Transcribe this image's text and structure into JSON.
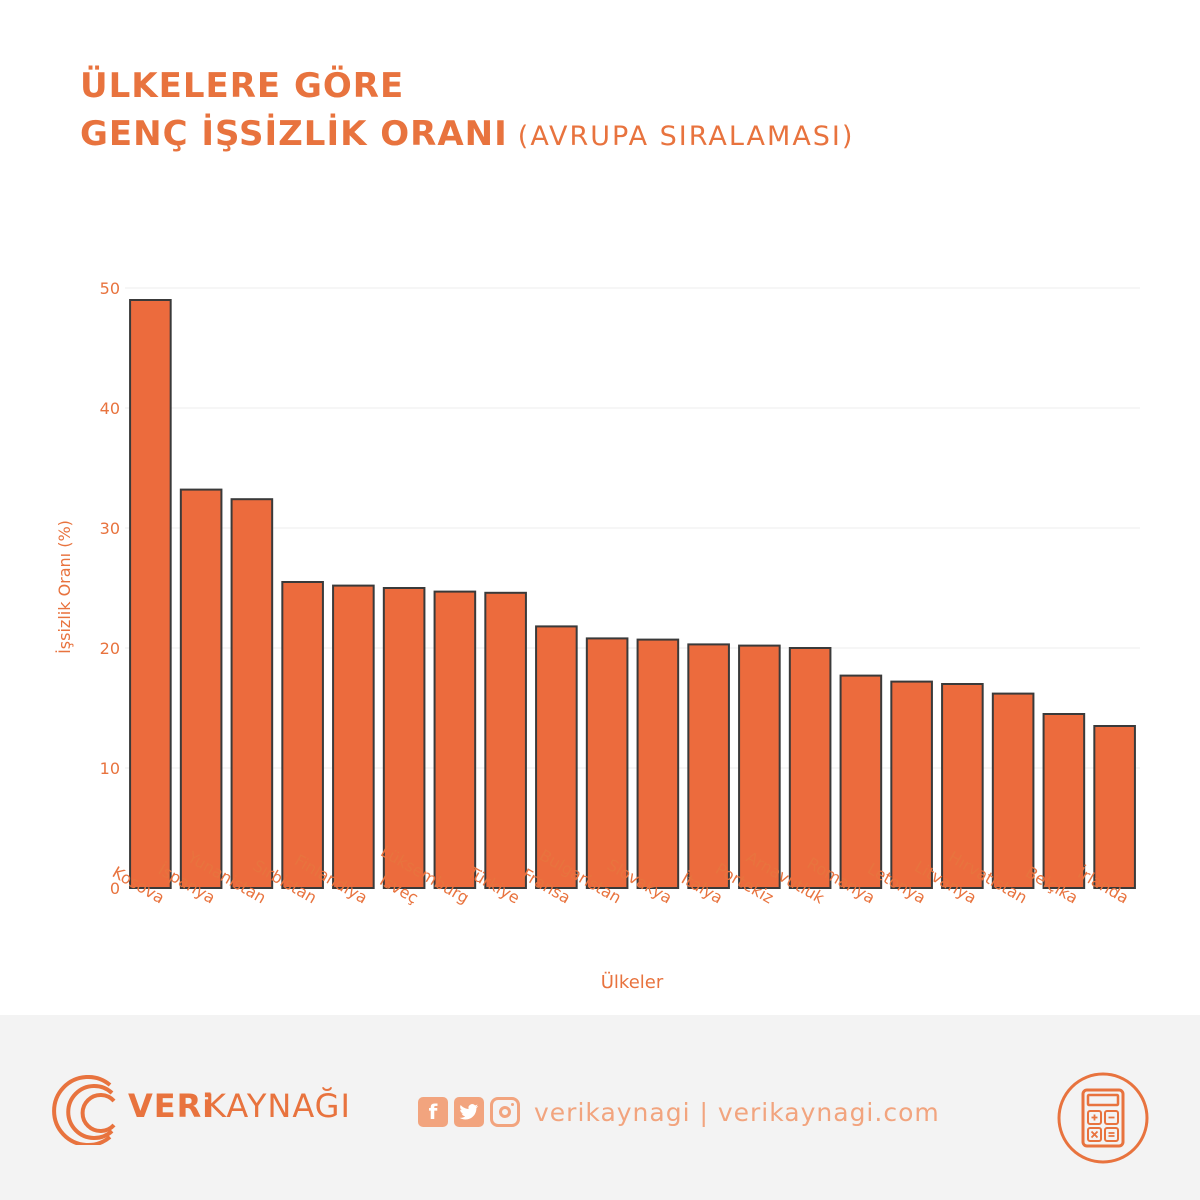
{
  "header": {
    "title_line1": "ÜLKELERE GÖRE",
    "title_line2": "GENÇ İŞSİZLİK ORANI",
    "title_suffix": "(AVRUPA SIRALAMASI)"
  },
  "chart_data": {
    "type": "bar",
    "title": "ÜLKELERE GÖRE GENÇ İŞSİZLİK ORANI (AVRUPA SIRALAMASI)",
    "xlabel": "Ülkeler",
    "ylabel": "İşsizlik Oranı (%)",
    "ylim": [
      0,
      50
    ],
    "yticks": [
      0,
      10,
      20,
      30,
      40,
      50
    ],
    "grid": true,
    "categories": [
      "Kosova",
      "İspanya",
      "Yunanistan",
      "Sırbistan",
      "Finlandiya",
      "İsveç",
      "Lüksemburg",
      "Türkiye",
      "Fransa",
      "Bulgaristan",
      "Slovakya",
      "İtalya",
      "Portekiz",
      "Arnavutluk",
      "Romanya",
      "Letonya",
      "Litvanya",
      "Hırvatistan",
      "Belçika",
      "İrlanda"
    ],
    "values": [
      49.0,
      33.2,
      32.4,
      25.5,
      25.2,
      25.0,
      24.7,
      24.6,
      21.8,
      20.8,
      20.7,
      20.3,
      20.2,
      20.0,
      17.7,
      17.2,
      17.0,
      16.2,
      14.5,
      13.5
    ],
    "colors": {
      "bar": "#ec6b3d",
      "bar_stroke": "#3a3a3a",
      "text": "#e8733e",
      "grid": "#eeeeee"
    }
  },
  "footer": {
    "brand_bold": "VERi",
    "brand_light": "KAYNAĞI",
    "social_text": "verikaynagi | verikaynagi.com",
    "icons": [
      "facebook-icon",
      "twitter-icon",
      "instagram-icon",
      "calculator-icon"
    ]
  }
}
